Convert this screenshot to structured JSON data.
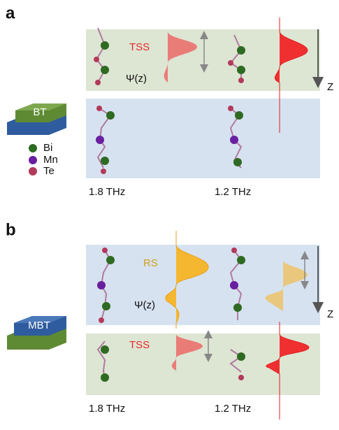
{
  "panels": [
    {
      "label": "a",
      "block_label": "BT",
      "legend": [
        "Bi",
        "Mn",
        "Te"
      ],
      "state": "TSS",
      "wavefunction": "Ψ(z)",
      "axis": "Z",
      "frequencies": [
        "1.8 THz",
        "1.2 THz"
      ]
    },
    {
      "label": "b",
      "block_label": "MBT",
      "state_top": "RS",
      "state_bottom": "TSS",
      "wavefunction": "Ψ(z)",
      "axis": "Z",
      "frequencies": [
        "1.8 THz",
        "1.2 THz"
      ]
    }
  ]
}
